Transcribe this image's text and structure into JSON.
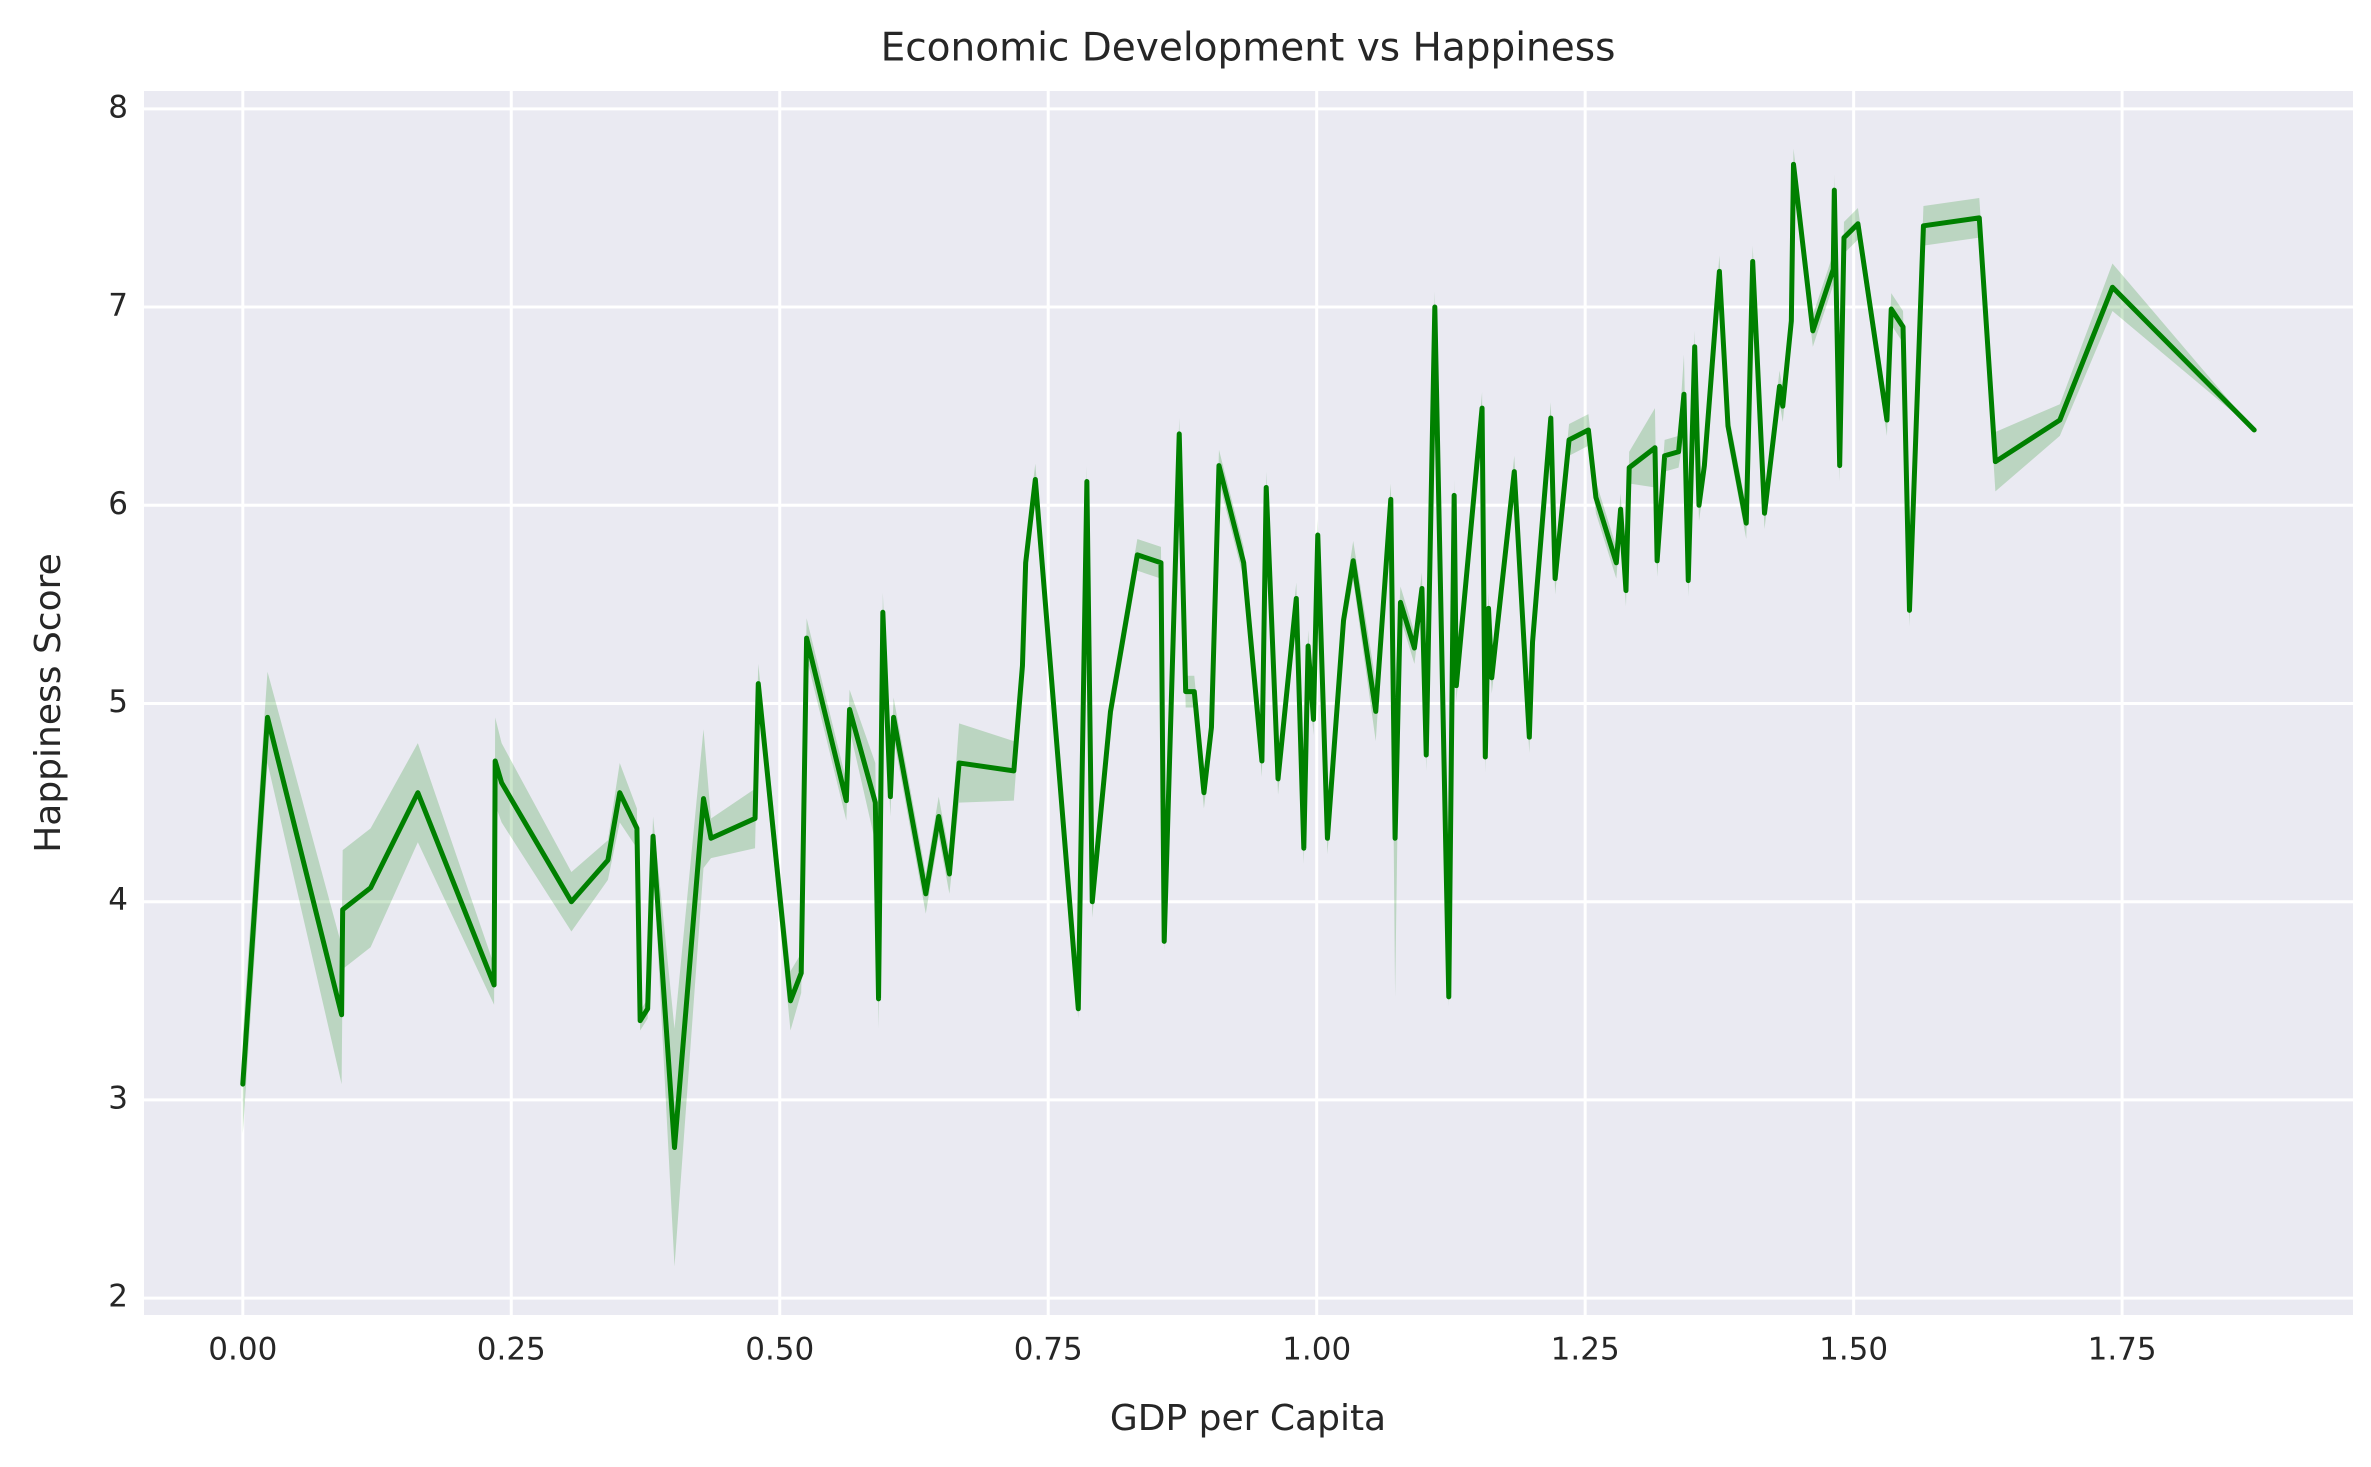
{
  "chart_data": {
    "type": "line",
    "title": "Economic Development vs Happiness",
    "xlabel": "GDP per Capita",
    "ylabel": "Happiness Score",
    "grid": true,
    "xlim": [
      -0.092,
      1.965
    ],
    "ylim": [
      1.915,
      8.09
    ],
    "xticks": [
      {
        "value": 0,
        "label": "0.00"
      },
      {
        "value": 0.25,
        "label": "0.25"
      },
      {
        "value": 0.5,
        "label": "0.50"
      },
      {
        "value": 0.75,
        "label": "0.75"
      },
      {
        "value": 1,
        "label": "1.00"
      },
      {
        "value": 1.25,
        "label": "1.25"
      },
      {
        "value": 1.5,
        "label": "1.50"
      },
      {
        "value": 1.75,
        "label": "1.75"
      }
    ],
    "yticks": [
      2,
      3,
      4,
      5,
      6,
      7,
      8
    ],
    "x": [
      0,
      0.023,
      0.092,
      0.093,
      0.119,
      0.163,
      0.234,
      0.235,
      0.241,
      0.306,
      0.34,
      0.351,
      0.367,
      0.37,
      0.377,
      0.382,
      0.402,
      0.429,
      0.436,
      0.477,
      0.48,
      0.51,
      0.52,
      0.525,
      0.562,
      0.565,
      0.589,
      0.592,
      0.596,
      0.603,
      0.606,
      0.636,
      0.648,
      0.658,
      0.667,
      0.718,
      0.726,
      0.729,
      0.738,
      0.778,
      0.786,
      0.791,
      0.808,
      0.833,
      0.855,
      0.858,
      0.872,
      0.878,
      0.886,
      0.895,
      0.902,
      0.909,
      0.932,
      0.949,
      0.953,
      0.964,
      0.981,
      0.988,
      0.992,
      0.997,
      1.001,
      1.01,
      1.025,
      1.034,
      1.055,
      1.069,
      1.073,
      1.078,
      1.091,
      1.098,
      1.102,
      1.11,
      1.123,
      1.128,
      1.13,
      1.154,
      1.157,
      1.16,
      1.163,
      1.184,
      1.198,
      1.201,
      1.218,
      1.222,
      1.235,
      1.253,
      1.26,
      1.279,
      1.283,
      1.288,
      1.291,
      1.315,
      1.317,
      1.324,
      1.337,
      1.342,
      1.346,
      1.352,
      1.356,
      1.361,
      1.375,
      1.383,
      1.4,
      1.406,
      1.417,
      1.431,
      1.434,
      1.442,
      1.444,
      1.462,
      1.481,
      1.482,
      1.487,
      1.491,
      1.504,
      1.531,
      1.535,
      1.546,
      1.552,
      1.565,
      1.617,
      1.632,
      1.692,
      1.741,
      1.873
    ],
    "series": [
      {
        "color": "#008000",
        "values": [
          3.08,
          4.93,
          3.43,
          3.96,
          4.07,
          4.55,
          3.58,
          4.71,
          4.6,
          4.0,
          4.21,
          4.55,
          4.37,
          3.4,
          3.46,
          4.33,
          2.76,
          4.52,
          4.32,
          4.42,
          5.1,
          3.5,
          3.64,
          5.33,
          4.51,
          4.97,
          4.5,
          3.51,
          5.46,
          4.53,
          4.93,
          4.04,
          4.43,
          4.14,
          4.7,
          4.66,
          5.19,
          5.71,
          6.13,
          3.46,
          6.12,
          4.0,
          4.96,
          5.75,
          5.71,
          3.8,
          6.36,
          5.06,
          5.06,
          4.55,
          4.88,
          6.2,
          5.71,
          4.71,
          6.09,
          4.62,
          5.53,
          4.27,
          5.29,
          4.92,
          5.85,
          4.32,
          5.42,
          5.72,
          4.96,
          6.03,
          4.32,
          5.51,
          5.28,
          5.58,
          4.74,
          7.0,
          3.52,
          6.05,
          5.09,
          6.49,
          4.73,
          5.48,
          5.13,
          6.17,
          4.83,
          5.31,
          6.44,
          5.63,
          6.33,
          6.38,
          6.04,
          5.71,
          5.98,
          5.57,
          6.19,
          6.29,
          5.72,
          6.25,
          6.27,
          6.56,
          5.62,
          6.8,
          6.0,
          6.2,
          7.18,
          6.4,
          5.91,
          7.23,
          5.96,
          6.6,
          6.5,
          6.93,
          7.72,
          6.88,
          7.19,
          7.59,
          6.2,
          7.35,
          7.42,
          6.43,
          6.99,
          6.9,
          5.47,
          7.41,
          7.45,
          6.22,
          6.43,
          7.1,
          6.38
        ],
        "ci_lower": [
          2.83,
          4.7,
          3.08,
          3.66,
          3.77,
          4.3,
          3.48,
          4.49,
          4.4,
          3.85,
          4.11,
          4.4,
          4.27,
          3.35,
          3.41,
          4.23,
          2.16,
          4.17,
          4.22,
          4.27,
          5.0,
          3.35,
          3.54,
          5.23,
          4.41,
          4.87,
          4.3,
          3.36,
          5.36,
          4.43,
          4.83,
          3.94,
          4.33,
          4.04,
          4.5,
          4.51,
          5.11,
          5.61,
          6.05,
          3.41,
          6.04,
          3.92,
          4.88,
          5.67,
          5.63,
          3.75,
          6.28,
          4.98,
          4.98,
          4.47,
          4.8,
          6.12,
          5.63,
          4.63,
          6.01,
          4.54,
          5.45,
          4.19,
          5.21,
          4.84,
          5.77,
          4.24,
          5.34,
          5.62,
          4.81,
          5.95,
          3.52,
          5.43,
          5.2,
          5.5,
          4.66,
          6.92,
          3.47,
          5.97,
          5.01,
          6.41,
          4.65,
          5.4,
          5.05,
          6.09,
          4.75,
          5.23,
          6.36,
          5.55,
          6.25,
          6.3,
          5.96,
          5.63,
          5.9,
          5.49,
          6.11,
          6.09,
          5.64,
          6.17,
          6.19,
          6.36,
          5.54,
          6.72,
          5.92,
          6.12,
          7.1,
          6.32,
          5.83,
          7.15,
          5.88,
          6.52,
          6.42,
          6.85,
          7.64,
          6.8,
          7.11,
          7.51,
          6.12,
          7.27,
          7.34,
          6.35,
          6.91,
          6.82,
          5.39,
          7.31,
          7.35,
          6.07,
          6.35,
          6.98,
          6.38
        ],
        "ci_upper": [
          3.33,
          5.16,
          3.78,
          4.26,
          4.37,
          4.8,
          3.68,
          4.93,
          4.8,
          4.15,
          4.31,
          4.7,
          4.47,
          3.45,
          3.51,
          4.43,
          3.36,
          4.87,
          4.42,
          4.57,
          5.2,
          3.65,
          3.74,
          5.43,
          4.61,
          5.07,
          4.7,
          3.66,
          5.56,
          4.63,
          5.03,
          4.14,
          4.53,
          4.24,
          4.9,
          4.81,
          5.27,
          5.81,
          6.21,
          3.51,
          6.2,
          4.08,
          5.04,
          5.83,
          5.79,
          3.85,
          6.44,
          5.14,
          5.14,
          4.63,
          4.96,
          6.28,
          5.79,
          4.79,
          6.17,
          4.7,
          5.61,
          4.35,
          5.37,
          5.0,
          5.93,
          4.4,
          5.5,
          5.82,
          5.11,
          6.11,
          5.12,
          5.59,
          5.36,
          5.66,
          4.82,
          7.08,
          3.57,
          6.13,
          5.17,
          6.57,
          4.81,
          5.56,
          5.21,
          6.25,
          4.91,
          5.39,
          6.52,
          5.71,
          6.41,
          6.46,
          6.12,
          5.79,
          6.06,
          5.65,
          6.27,
          6.49,
          5.8,
          6.33,
          6.35,
          6.76,
          5.7,
          6.88,
          6.08,
          6.28,
          7.26,
          6.48,
          5.99,
          7.31,
          6.04,
          6.68,
          6.58,
          7.01,
          7.8,
          6.96,
          7.27,
          7.67,
          6.28,
          7.43,
          7.5,
          6.51,
          7.07,
          6.98,
          5.55,
          7.51,
          7.55,
          6.37,
          6.51,
          7.22,
          6.38
        ]
      }
    ]
  }
}
